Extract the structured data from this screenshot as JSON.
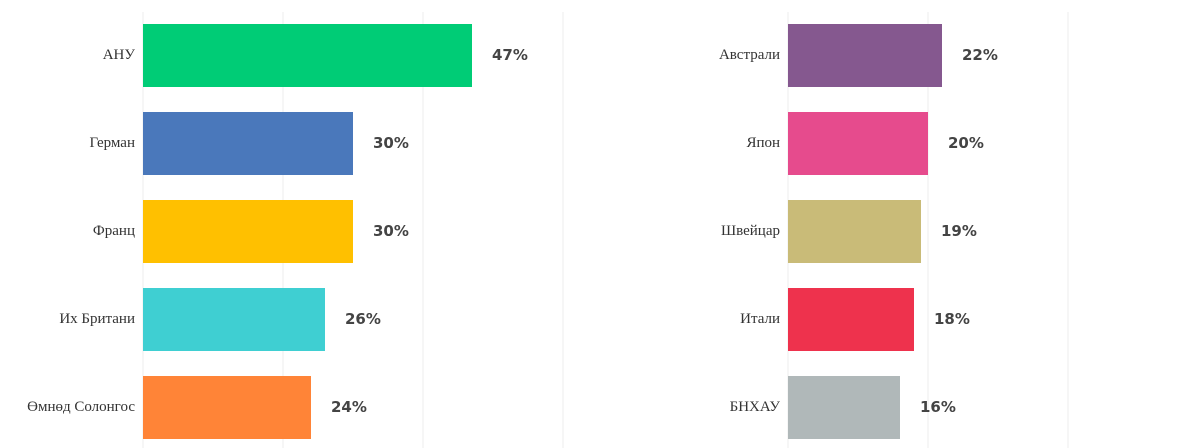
{
  "chart_data": [
    {
      "type": "bar",
      "orientation": "horizontal",
      "categories": [
        "АНУ",
        "Герман",
        "Франц",
        "Их Британи",
        "Өмнөд Солонгос"
      ],
      "values": [
        47,
        30,
        30,
        26,
        24
      ],
      "value_labels": [
        "47%",
        "30%",
        "30%",
        "26%",
        "24%"
      ],
      "colors": [
        "#00cc76",
        "#4a78bb",
        "#ffc000",
        "#3fcfd2",
        "#ff8437"
      ],
      "xlim": [
        0,
        60
      ],
      "xticks": [
        0,
        20,
        40,
        60
      ],
      "grid": true
    },
    {
      "type": "bar",
      "orientation": "horizontal",
      "categories": [
        "Австрали",
        "Япон",
        "Швейцар",
        "Итали",
        "БНХАУ"
      ],
      "values": [
        22,
        20,
        19,
        18,
        16
      ],
      "value_labels": [
        "22%",
        "20%",
        "19%",
        "18%",
        "16%"
      ],
      "colors": [
        "#85588f",
        "#e64b8d",
        "#c9bb78",
        "#ee324d",
        "#b0b8b9"
      ],
      "xlim": [
        0,
        55
      ],
      "xticks": [
        0,
        20,
        40
      ],
      "grid": true
    }
  ]
}
